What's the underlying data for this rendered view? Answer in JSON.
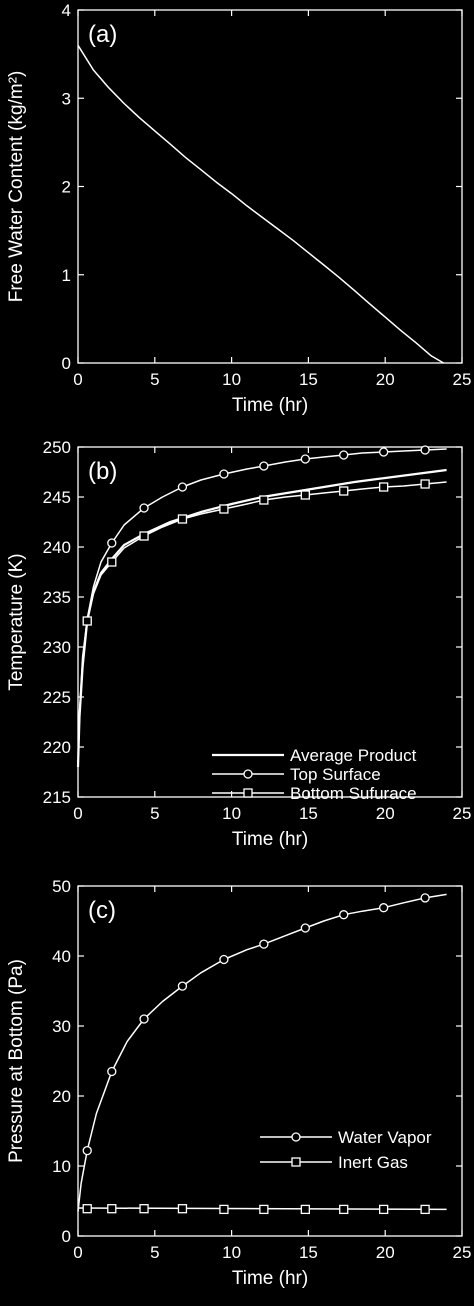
{
  "chart_data": [
    {
      "type": "line",
      "panel_label": "(a)",
      "xlabel": "Time (hr)",
      "ylabel": "Free Water Content (kg/m²)",
      "xlim": [
        0,
        25
      ],
      "ylim": [
        0,
        4
      ],
      "xticks": [
        "0",
        "5",
        "10",
        "15",
        "20",
        "25"
      ],
      "yticks": [
        "0",
        "1",
        "2",
        "3",
        "4"
      ],
      "series": [
        {
          "marker": "none",
          "x": [
            0,
            1,
            2,
            3,
            4,
            5,
            6,
            7,
            8,
            9,
            10,
            11,
            12,
            13,
            14,
            15,
            16,
            17,
            18,
            19,
            20,
            21,
            22,
            23,
            23.8
          ],
          "y": [
            3.6,
            3.32,
            3.12,
            2.94,
            2.78,
            2.63,
            2.48,
            2.33,
            2.19,
            2.05,
            1.92,
            1.78,
            1.65,
            1.52,
            1.39,
            1.25,
            1.11,
            0.97,
            0.82,
            0.67,
            0.52,
            0.37,
            0.23,
            0.08,
            0
          ]
        }
      ]
    },
    {
      "type": "line",
      "panel_label": "(b)",
      "xlabel": "Time (hr)",
      "ylabel": "Temperature (K)",
      "xlim": [
        0,
        25
      ],
      "ylim": [
        215,
        250
      ],
      "xticks": [
        "0",
        "5",
        "10",
        "15",
        "20",
        "25"
      ],
      "yticks": [
        "215",
        "220",
        "225",
        "230",
        "235",
        "240",
        "245",
        "250"
      ],
      "legend": "bottom-right",
      "series": [
        {
          "name": "Average Product",
          "marker": "none",
          "x": [
            0,
            0.1,
            0.3,
            0.6,
            1,
            1.5,
            2.2,
            3,
            4.3,
            6,
            8,
            10,
            12,
            14,
            16,
            18,
            20,
            22,
            24
          ],
          "y": [
            218,
            223,
            228,
            232.6,
            235.5,
            237.4,
            238.8,
            240.2,
            241.3,
            242.5,
            243.5,
            244.3,
            245,
            245.5,
            246,
            246.5,
            246.9,
            247.3,
            247.7
          ]
        },
        {
          "name": "Top Surface",
          "marker": "circle",
          "x": [
            0,
            0.1,
            0.3,
            0.6,
            1,
            1.5,
            2.2,
            3,
            4.3,
            5.5,
            6.8,
            8,
            9.5,
            11,
            12.1,
            13.5,
            14.8,
            16,
            17.3,
            18.5,
            19.9,
            21.2,
            22.6,
            24
          ],
          "y": [
            218,
            223.5,
            229,
            232.8,
            236,
            238.5,
            240.4,
            242.2,
            243.9,
            245,
            246,
            246.7,
            247.3,
            247.8,
            248.1,
            248.5,
            248.8,
            249,
            249.2,
            249.4,
            249.5,
            249.6,
            249.7,
            249.8
          ],
          "markers_x": [
            0.6,
            2.2,
            4.3,
            6.8,
            9.5,
            12.1,
            14.8,
            17.3,
            19.9,
            22.6
          ],
          "markers_y": [
            232.6,
            240.4,
            243.9,
            246,
            247.3,
            248.1,
            248.8,
            249.2,
            249.5,
            249.7
          ]
        },
        {
          "name": "Bottom Sufurace",
          "marker": "square",
          "x": [
            0,
            0.1,
            0.3,
            0.6,
            1,
            1.5,
            2.2,
            3,
            4.3,
            5.5,
            6.8,
            8,
            9.5,
            11,
            12.1,
            13.5,
            14.8,
            16,
            17.3,
            18.5,
            19.9,
            21.2,
            22.6,
            24
          ],
          "y": [
            218,
            223,
            228.5,
            232.6,
            235.3,
            237.2,
            238.5,
            239.9,
            241.1,
            242,
            242.8,
            243.3,
            243.8,
            244.3,
            244.7,
            245,
            245.2,
            245.4,
            245.6,
            245.8,
            246,
            246.1,
            246.3,
            246.5
          ],
          "markers_x": [
            0.6,
            2.2,
            4.3,
            6.8,
            9.5,
            12.1,
            14.8,
            17.3,
            19.9,
            22.6
          ],
          "markers_y": [
            232.6,
            238.5,
            241.1,
            242.8,
            243.8,
            244.7,
            245.2,
            245.6,
            246,
            246.3
          ]
        }
      ]
    },
    {
      "type": "line",
      "panel_label": "(c)",
      "xlabel": "Time (hr)",
      "ylabel": "Pressure at Bottom (Pa)",
      "xlim": [
        0,
        25
      ],
      "ylim": [
        0,
        50
      ],
      "xticks": [
        "0",
        "5",
        "10",
        "15",
        "20",
        "25"
      ],
      "yticks": [
        "0",
        "10",
        "20",
        "30",
        "40",
        "50"
      ],
      "legend": "bottom-right",
      "series": [
        {
          "name": "Water Vapor",
          "marker": "circle",
          "x": [
            0,
            0.2,
            0.6,
            1.2,
            2.2,
            3.2,
            4.3,
            5.5,
            6.8,
            8,
            9.5,
            11,
            12.1,
            13.5,
            14.8,
            16,
            17.3,
            18.5,
            19.9,
            21.2,
            22.6,
            24
          ],
          "y": [
            3.5,
            7.5,
            12.2,
            17.5,
            23.5,
            27.8,
            31,
            33.5,
            35.7,
            37.6,
            39.5,
            40.9,
            41.7,
            42.9,
            44,
            45,
            45.9,
            46.4,
            46.9,
            47.6,
            48.3,
            48.8
          ],
          "markers_x": [
            0.6,
            2.2,
            4.3,
            6.8,
            9.5,
            12.1,
            14.8,
            17.3,
            19.9,
            22.6
          ],
          "markers_y": [
            12.2,
            23.5,
            31,
            35.7,
            39.5,
            41.7,
            44,
            45.9,
            46.9,
            48.3
          ]
        },
        {
          "name": "Inert Gas",
          "marker": "square",
          "x": [
            0,
            24
          ],
          "y": [
            4,
            3.8
          ],
          "markers_x": [
            0.6,
            2.2,
            4.3,
            6.8,
            9.5,
            12.1,
            14.8,
            17.3,
            19.9,
            22.6
          ],
          "markers_y": [
            3.9,
            3.9,
            3.9,
            3.9,
            3.8,
            3.8,
            3.8,
            3.8,
            3.8,
            3.8
          ]
        }
      ]
    }
  ]
}
